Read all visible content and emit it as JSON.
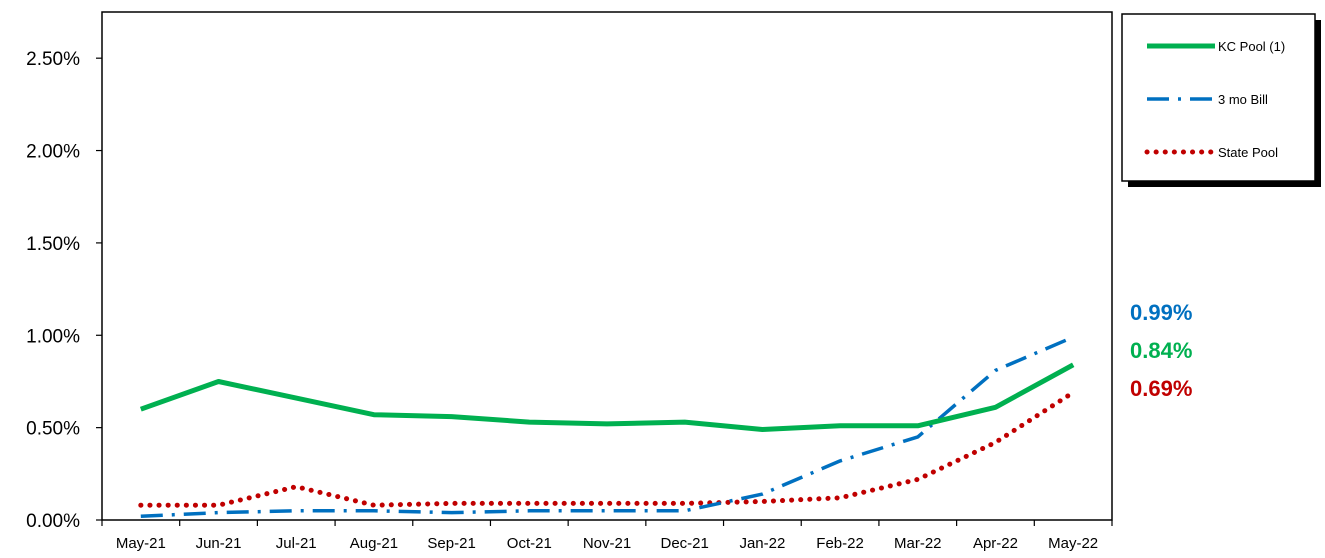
{
  "chart_data": {
    "type": "line",
    "title": "",
    "xlabel": "",
    "ylabel": "",
    "categories": [
      "May-21",
      "Jun-21",
      "Jul-21",
      "Aug-21",
      "Sep-21",
      "Oct-21",
      "Nov-21",
      "Dec-21",
      "Jan-22",
      "Feb-22",
      "Mar-22",
      "Apr-22",
      "May-22"
    ],
    "ylim": [
      0,
      0.0275
    ],
    "yticks": [
      0,
      0.005,
      0.01,
      0.015,
      0.02,
      0.025
    ],
    "ytick_labels": [
      "0.00%",
      "0.50%",
      "1.00%",
      "1.50%",
      "2.00%",
      "2.50%"
    ],
    "grid": false,
    "legend_position": "top-right",
    "series": [
      {
        "name": "KC Pool (1)",
        "color": "#00B050",
        "style": "solid",
        "values": [
          0.006,
          0.0075,
          0.0066,
          0.0057,
          0.0056,
          0.0053,
          0.0052,
          0.0053,
          0.0049,
          0.0051,
          0.0051,
          0.0061,
          0.0084
        ],
        "end_label": "0.84%"
      },
      {
        "name": "3 mo Bill",
        "color": "#0070C0",
        "style": "dash-dot",
        "values": [
          0.0002,
          0.0004,
          0.0005,
          0.0005,
          0.0004,
          0.0005,
          0.0005,
          0.0005,
          0.0014,
          0.0032,
          0.0045,
          0.0081,
          0.0099
        ],
        "end_label": "0.99%"
      },
      {
        "name": "State Pool",
        "color": "#C00000",
        "style": "dotted",
        "values": [
          0.0008,
          0.0008,
          0.0018,
          0.0008,
          0.0009,
          0.0009,
          0.0009,
          0.0009,
          0.001,
          0.0012,
          0.0022,
          0.0042,
          0.0069
        ],
        "end_label": "0.69%"
      }
    ]
  }
}
